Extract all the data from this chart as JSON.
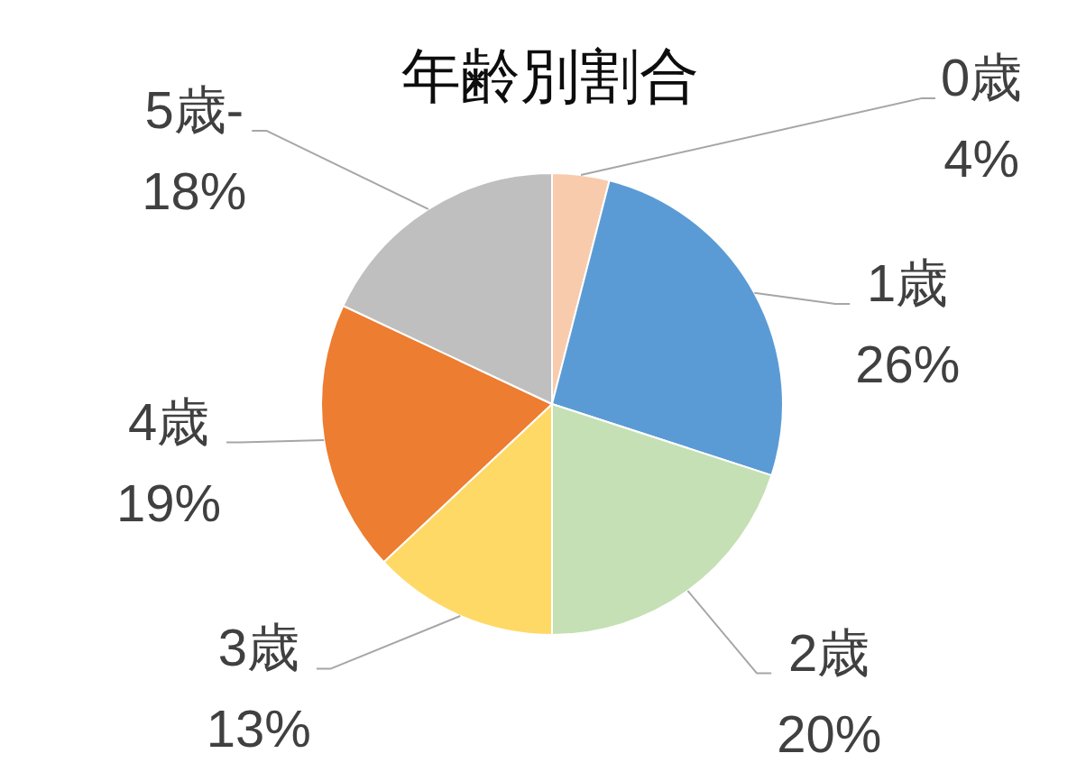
{
  "chart_data": {
    "type": "pie",
    "title": "年齢別割合",
    "categories": [
      "0歳",
      "1歳",
      "2歳",
      "3歳",
      "4歳",
      "5歳-"
    ],
    "values": [
      4,
      26,
      20,
      13,
      19,
      18
    ],
    "value_labels": [
      "4%",
      "26%",
      "20%",
      "13%",
      "19%",
      "18%"
    ],
    "colors": [
      "#f8cbad",
      "#5b9bd5",
      "#c5e0b4",
      "#ffd966",
      "#ed7d31",
      "#bfbfbf"
    ]
  }
}
